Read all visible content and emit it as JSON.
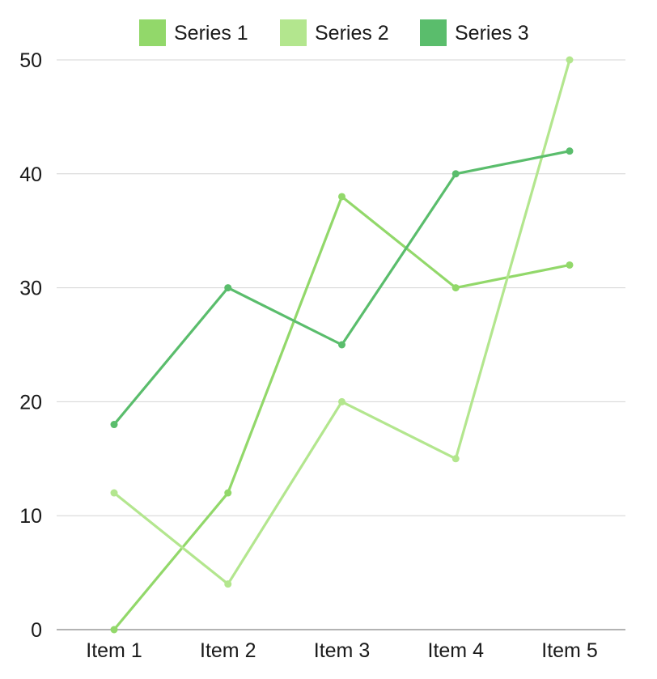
{
  "chart_data": {
    "type": "line",
    "categories": [
      "Item 1",
      "Item 2",
      "Item 3",
      "Item 4",
      "Item 5"
    ],
    "series": [
      {
        "name": "Series 1",
        "color": "#92d86a",
        "values": [
          0,
          12,
          38,
          30,
          32
        ]
      },
      {
        "name": "Series 2",
        "color": "#b3e68e",
        "values": [
          12,
          4,
          20,
          15,
          50
        ]
      },
      {
        "name": "Series 3",
        "color": "#5abd6c",
        "values": [
          18,
          30,
          25,
          40,
          42
        ]
      }
    ],
    "ylim": [
      0,
      50
    ],
    "yticks": [
      0,
      10,
      20,
      30,
      40,
      50
    ],
    "grid": true,
    "legend_position": "top"
  }
}
